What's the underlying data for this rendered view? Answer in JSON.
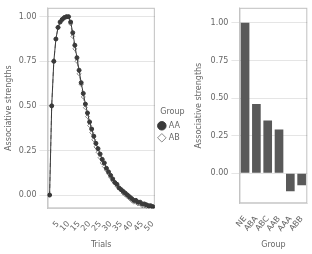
{
  "chart_data": [
    {
      "type": "line",
      "x": [
        1,
        2,
        3,
        4,
        5,
        6,
        7,
        8,
        9,
        10,
        11,
        12,
        13,
        14,
        15,
        16,
        17,
        18,
        19,
        20,
        21,
        22,
        23,
        24,
        25,
        26,
        27,
        28,
        29,
        30,
        31,
        32,
        33,
        34,
        35,
        36,
        37,
        38,
        39,
        40,
        41,
        42,
        43,
        44,
        45,
        46,
        47,
        48,
        49,
        50
      ],
      "series": [
        {
          "name": "AA",
          "color": "#3a3a3a",
          "marker": "circle",
          "line_style": "solid",
          "values": [
            0.0,
            0.5,
            0.75,
            0.875,
            0.94,
            0.97,
            0.985,
            0.995,
            1.0,
            1.0,
            0.97,
            0.91,
            0.84,
            0.77,
            0.7,
            0.63,
            0.57,
            0.51,
            0.46,
            0.41,
            0.37,
            0.33,
            0.29,
            0.26,
            0.23,
            0.2,
            0.18,
            0.15,
            0.13,
            0.11,
            0.09,
            0.07,
            0.06,
            0.04,
            0.03,
            0.02,
            0.01,
            0.0,
            -0.01,
            -0.02,
            -0.03,
            -0.03,
            -0.04,
            -0.04,
            -0.05,
            -0.05,
            -0.055,
            -0.06,
            -0.06,
            -0.065
          ]
        },
        {
          "name": "AB",
          "color": "#888888",
          "marker": "diamond",
          "line_style": "dashed",
          "values": [
            0.0,
            0.5,
            0.75,
            0.875,
            0.94,
            0.97,
            0.985,
            0.995,
            1.0,
            1.0,
            0.96,
            0.89,
            0.82,
            0.75,
            0.68,
            0.62,
            0.55,
            0.49,
            0.44,
            0.39,
            0.35,
            0.31,
            0.27,
            0.24,
            0.21,
            0.18,
            0.16,
            0.14,
            0.12,
            0.1,
            0.08,
            0.07,
            0.05,
            0.04,
            0.03,
            0.01,
            0.0,
            -0.01,
            -0.02,
            -0.03,
            -0.04,
            -0.04,
            -0.05,
            -0.05,
            -0.06,
            -0.06,
            -0.065,
            -0.065,
            -0.07,
            -0.07
          ]
        }
      ],
      "xlabel": "Trials",
      "ylabel": "Associative strengths",
      "xlim": [
        0,
        51
      ],
      "xticks": [
        5,
        10,
        15,
        20,
        25,
        30,
        35,
        40,
        45,
        50
      ],
      "ylim": [
        -0.075,
        1.05
      ],
      "yticks": [
        {
          "value": 0,
          "label": "0.00"
        },
        {
          "value": 0.25,
          "label": "0.25"
        },
        {
          "value": 0.5,
          "label": "0.50"
        },
        {
          "value": 0.75,
          "label": "0.75"
        },
        {
          "value": 1,
          "label": "1.00"
        }
      ],
      "grid": "y",
      "legend": "right",
      "legend_title": "Group"
    },
    {
      "type": "bar",
      "categories": [
        "NE",
        "ABA",
        "ABC",
        "AAB",
        "AAA",
        "ABB"
      ],
      "values": [
        1.0,
        0.46,
        0.35,
        0.29,
        -0.12,
        -0.08
      ],
      "color": "#595959",
      "xlabel": "Group",
      "ylabel": "Associative strengths",
      "ylim": [
        -0.2,
        1.1
      ],
      "yticks": [
        {
          "value": 0,
          "label": "0.00"
        },
        {
          "value": 0.25,
          "label": "0.25"
        },
        {
          "value": 0.5,
          "label": "0.50"
        },
        {
          "value": 0.75,
          "label": "0.75"
        },
        {
          "value": 1,
          "label": "1.00"
        }
      ],
      "grid": "y"
    }
  ]
}
